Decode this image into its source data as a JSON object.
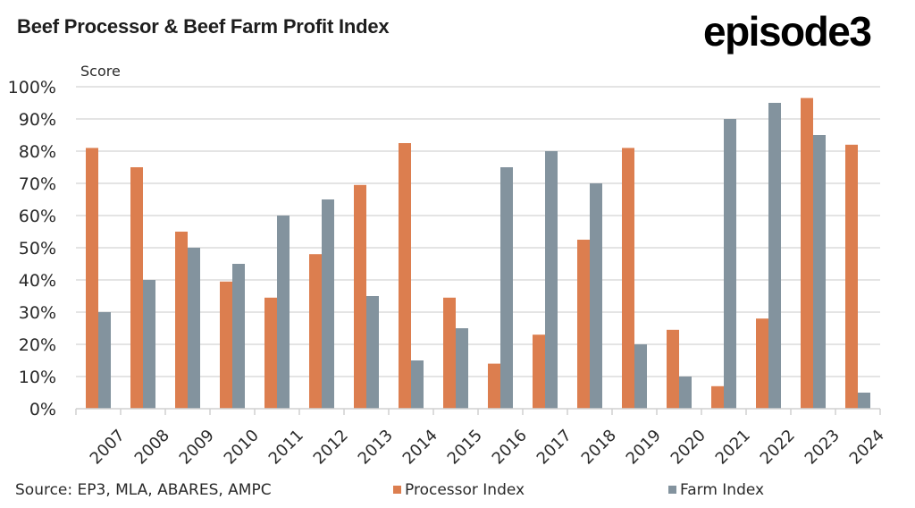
{
  "header": {
    "title": "Beef Processor & Beef Farm Profit Index",
    "logo": "episode3"
  },
  "footer": {
    "source": "Source: EP3, MLA, ABARES, AMPC"
  },
  "colors": {
    "processor": "#dc7e4f",
    "farm": "#83939e",
    "grid": "#dcdcdc"
  },
  "chart_data": {
    "type": "bar",
    "title": "Beef Processor & Beef Farm Profit Index",
    "xlabel": "",
    "ylabel": "Score",
    "ylim": [
      0,
      100
    ],
    "yticks": [
      "0%",
      "10%",
      "20%",
      "30%",
      "40%",
      "50%",
      "60%",
      "70%",
      "80%",
      "90%",
      "100%"
    ],
    "grid": true,
    "legend_position": "bottom",
    "categories": [
      "2007",
      "2008",
      "2009",
      "2010",
      "2011",
      "2012",
      "2013",
      "2014",
      "2015",
      "2016",
      "2017",
      "2018",
      "2019",
      "2020",
      "2021",
      "2022",
      "2023",
      "2024"
    ],
    "series": [
      {
        "name": "Processor Index",
        "values": [
          81,
          75,
          55,
          39.5,
          34.5,
          48,
          69.5,
          82.5,
          34.5,
          14,
          23,
          52.5,
          81,
          24.5,
          7,
          28,
          96.5,
          82
        ]
      },
      {
        "name": "Farm Index",
        "values": [
          30,
          40,
          50,
          45,
          60,
          65,
          35,
          15,
          25,
          75,
          80,
          70,
          20,
          10,
          90,
          95,
          85,
          5
        ]
      }
    ]
  }
}
